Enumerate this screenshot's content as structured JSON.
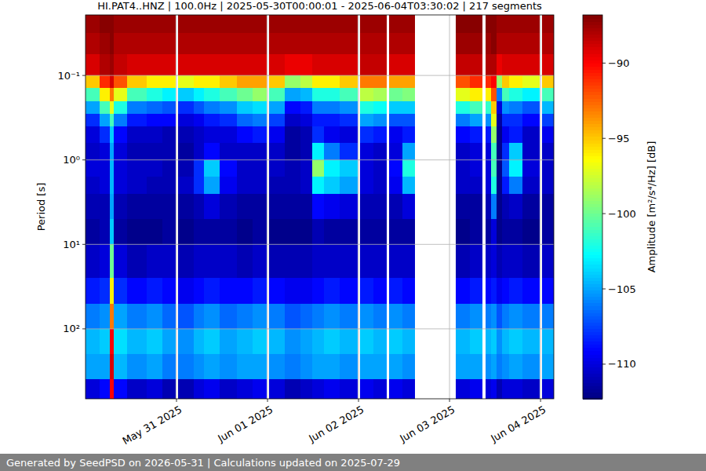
{
  "chart_data": {
    "type": "heatmap",
    "title": "HI.PAT4..HNZ | 100.0Hz | 2025-05-30T00:00:01 - 2025-06-04T03:30:02 | 217 segments",
    "y_label": "Period [s]",
    "colorbar_label": "Amplitude [m²/s⁴/Hz] [dB]",
    "footer": "Generated by SeedPSD on 2026-05-31 | Calculations updated on 2025-07-29",
    "log": "y",
    "grid": true,
    "xlim": [
      "2025-05-30T00:00:01",
      "2025-06-04T03:30:02"
    ],
    "ylim": [
      0.0192,
      673
    ],
    "xticks": [
      {
        "value": "2025-05-31T00:00",
        "label": "May 31 2025"
      },
      {
        "value": "2025-06-01T00:00",
        "label": "Jun 01 2025"
      },
      {
        "value": "2025-06-02T00:00",
        "label": "Jun 02 2025"
      },
      {
        "value": "2025-06-03T00:00",
        "label": "Jun 03 2025"
      },
      {
        "value": "2025-06-04T00:00",
        "label": "Jun 04 2025"
      }
    ],
    "yticks": [
      {
        "value": 0.1,
        "label": "10⁻¹"
      },
      {
        "value": 1,
        "label": "10⁰"
      },
      {
        "value": 10,
        "label": "10¹"
      },
      {
        "value": 100,
        "label": "10²"
      }
    ],
    "colorbar_lim": [
      -112.3,
      -86.8
    ],
    "colorbar_ticks": [
      {
        "value": -90,
        "label": "−90"
      },
      {
        "value": -95,
        "label": "−95"
      },
      {
        "value": -100,
        "label": "−100"
      },
      {
        "value": -105,
        "label": "−105"
      },
      {
        "value": -110,
        "label": "−110"
      }
    ],
    "x_edges": [
      "2025-05-30T00:00:01",
      "2025-05-30T03:38",
      "2025-05-30T06:20",
      "2025-05-30T07:23",
      "2025-05-30T10:55",
      "2025-05-30T16:06",
      "2025-05-30T20:16",
      "2025-05-30T23:35",
      "2025-05-31T00:25",
      "2025-05-31T04:34",
      "2025-05-31T07:16",
      "2025-05-31T11:26",
      "2025-05-31T16:00",
      "2025-05-31T20:09",
      "2025-05-31T23:35",
      "2025-06-01T00:25",
      "2025-06-01T04:28",
      "2025-06-01T08:37",
      "2025-06-01T11:44",
      "2025-06-01T14:51",
      "2025-06-01T19:01",
      "2025-06-01T23:35",
      "2025-06-02T00:25",
      "2025-06-02T03:57",
      "2025-06-02T07:16",
      "2025-06-02T08:06",
      "2025-06-02T11:38",
      "2025-06-02T14:45",
      "2025-06-03T01:34",
      "2025-06-03T05:18",
      "2025-06-03T08:37",
      "2025-06-03T09:27",
      "2025-06-03T10:55",
      "2025-06-03T12:22",
      "2025-06-03T13:49",
      "2025-06-03T15:41",
      "2025-06-03T19:13",
      "2025-06-03T23:35",
      "2025-06-04T00:25",
      "2025-06-04T03:30:02"
    ],
    "y_edges": [
      0.0192,
      0.0316,
      0.0562,
      0.1,
      0.141,
      0.2,
      0.282,
      0.398,
      0.631,
      1,
      1.58,
      2.51,
      5.01,
      10,
      25.1,
      50.1,
      100,
      200,
      398,
      673
    ],
    "values": [
      [
        -87.5,
        -88,
        -89,
        -95,
        -101,
        -105,
        -108,
        -110,
        -110.5,
        -110,
        -110.5,
        -111,
        -111.5,
        -110.5,
        -108.5,
        -106,
        -104.5,
        -105,
        -110
      ],
      [
        -87,
        -87.5,
        -88,
        -91,
        -96,
        -101,
        -105,
        -108,
        -110,
        -110,
        -110,
        -111,
        -111,
        -110,
        -108,
        -105.5,
        -104,
        -105,
        -109
      ],
      [
        -87,
        -87,
        -87.5,
        -89,
        -93,
        -97,
        -101,
        -104,
        -105,
        -104.5,
        -104.5,
        -105,
        -104,
        -100,
        -96,
        -93,
        -90,
        -89,
        -90
      ],
      [
        -87.5,
        -88,
        -88.5,
        -92,
        -97,
        -102,
        -106,
        -109,
        -110,
        -110,
        -110,
        -111,
        -111.5,
        -110,
        -108,
        -105,
        -103.5,
        -104.5,
        -109
      ],
      [
        -87.5,
        -88,
        -89,
        -95,
        -101,
        -106,
        -108.5,
        -110.5,
        -111,
        -110.5,
        -110.5,
        -111.5,
        -112,
        -111,
        -109,
        -106,
        -104.5,
        -105.5,
        -110.5
      ],
      [
        -87.5,
        -88,
        -89,
        -96,
        -102,
        -106.5,
        -109,
        -110.5,
        -111,
        -110.5,
        -111,
        -111.5,
        -112,
        -110.5,
        -108.5,
        -105.5,
        -104,
        -105,
        -110
      ],
      [
        -87.5,
        -88,
        -89,
        -96,
        -103,
        -107,
        -109,
        -111,
        -111,
        -111,
        -111,
        -111.5,
        -111.5,
        -110.5,
        -109,
        -106.5,
        -105,
        -106,
        -111
      ],
      null,
      [
        -87.5,
        -88,
        -89,
        -97,
        -104,
        -108,
        -110,
        -111,
        -111.5,
        -111,
        -110.5,
        -111.5,
        -112,
        -111,
        -109.5,
        -107,
        -105.5,
        -106,
        -111
      ],
      [
        -87.5,
        -88,
        -89,
        -96,
        -103,
        -107,
        -109.5,
        -110.5,
        -110.5,
        -108,
        -108,
        -111,
        -111.5,
        -110.5,
        -109,
        -106,
        -104.5,
        -105.5,
        -110
      ],
      [
        -87.5,
        -88,
        -89,
        -96,
        -102,
        -106,
        -108.5,
        -110,
        -109,
        -104,
        -105,
        -110,
        -111.5,
        -110.5,
        -108.5,
        -105.5,
        -104,
        -105,
        -109.5
      ],
      [
        -87.5,
        -88,
        -89,
        -95,
        -101,
        -105.5,
        -108,
        -110,
        -110.5,
        -109,
        -109.5,
        -111,
        -111.5,
        -110.5,
        -109,
        -106.5,
        -105,
        -105.5,
        -110.5
      ],
      [
        -87.5,
        -88,
        -89,
        -94,
        -100,
        -104,
        -106.5,
        -109,
        -110.5,
        -110.5,
        -110.5,
        -111.5,
        -112,
        -111,
        -109,
        -106,
        -104.5,
        -105,
        -110
      ],
      [
        -87.5,
        -88,
        -89,
        -94,
        -99,
        -103.5,
        -106,
        -108.5,
        -110.5,
        -110.5,
        -110.5,
        -111.5,
        -111.5,
        -110.5,
        -108.5,
        -105.5,
        -104,
        -105,
        -109.5
      ],
      null,
      [
        -87.5,
        -88,
        -89,
        -95,
        -101,
        -105,
        -107.5,
        -109.5,
        -110.5,
        -110.5,
        -111,
        -111.5,
        -112,
        -111,
        -109,
        -106,
        -104.5,
        -105.5,
        -110
      ],
      [
        -87.5,
        -88,
        -89.5,
        -99,
        -105,
        -109,
        -110.5,
        -111.5,
        -111.5,
        -111,
        -111,
        -111.5,
        -112,
        -111,
        -109.5,
        -107,
        -105.5,
        -106,
        -111
      ],
      [
        -87.5,
        -88,
        -89.5,
        -98,
        -104.5,
        -108.5,
        -110,
        -111,
        -111,
        -110.5,
        -110.5,
        -111.5,
        -112,
        -111,
        -109.5,
        -106.5,
        -105,
        -105.5,
        -110.5
      ],
      [
        -87.5,
        -88,
        -89,
        -96,
        -102,
        -106,
        -108.5,
        -108,
        -103,
        -99,
        -103,
        -109,
        -111,
        -110.5,
        -109,
        -106,
        -104.5,
        -105,
        -110
      ],
      [
        -87.5,
        -88,
        -89,
        -96,
        -102,
        -106,
        -108.5,
        -109.5,
        -106,
        -103,
        -104,
        -109.5,
        -111.5,
        -110.5,
        -108.5,
        -105.5,
        -104,
        -105,
        -109.5
      ],
      [
        -87.5,
        -88,
        -89,
        -95,
        -101,
        -105.5,
        -108,
        -110,
        -108,
        -104,
        -105,
        -110,
        -111.5,
        -110.5,
        -109,
        -106,
        -104.5,
        -105.5,
        -110
      ],
      null,
      [
        -87.5,
        -88,
        -88.5,
        -93,
        -98,
        -102,
        -105,
        -108,
        -110,
        -110,
        -110,
        -111,
        -111.5,
        -110.5,
        -108.5,
        -105.5,
        -104,
        -105,
        -109.5
      ],
      [
        -87.5,
        -88,
        -88.5,
        -93,
        -98.5,
        -102.5,
        -105.5,
        -108.5,
        -110.5,
        -110.5,
        -110.5,
        -111,
        -111.5,
        -110.5,
        -109,
        -106,
        -104.5,
        -105,
        -110
      ],
      null,
      [
        -87.5,
        -88,
        -89,
        -94,
        -100,
        -104,
        -107,
        -109.5,
        -110,
        -109,
        -109.5,
        -111,
        -111.5,
        -110.5,
        -108.5,
        -105.5,
        -104,
        -105,
        -109.5
      ],
      [
        -87.5,
        -88,
        -89,
        -94,
        -99.5,
        -104,
        -107,
        -108.5,
        -105,
        -102,
        -104.5,
        -110,
        -111.5,
        -110.5,
        -109,
        -106,
        -104.5,
        -105.5,
        -110
      ],
      null,
      [
        -87,
        -87.5,
        -88.5,
        -92,
        -97,
        -102,
        -106,
        -109,
        -110.5,
        -110.5,
        -110.5,
        -111.5,
        -112,
        -111,
        -109,
        -106,
        -104.5,
        -105,
        -110
      ],
      [
        -87,
        -87.5,
        -88.5,
        -91,
        -96,
        -101,
        -105,
        -108.5,
        -110,
        -110,
        -110.5,
        -111.5,
        -111.5,
        -110.5,
        -108.5,
        -105.5,
        -104,
        -105,
        -109.5
      ],
      null,
      [
        -87,
        -87.5,
        -88,
        -91,
        -96,
        -101.5,
        -105.5,
        -108.5,
        -110,
        -110,
        -110,
        -111,
        -111.5,
        -110.5,
        -109,
        -106,
        -104.5,
        -105.5,
        -110
      ],
      [
        -87,
        -87,
        -88,
        -90,
        -92,
        -95,
        -97,
        -99,
        -101,
        -101,
        -102,
        -106,
        -110,
        -110,
        -108.5,
        -105.5,
        -104,
        -105,
        -109.5
      ],
      [
        -87.5,
        -88,
        -89.5,
        -99,
        -106,
        -110,
        -111.5,
        -112,
        -112,
        -112,
        -112,
        -112,
        -112,
        -111,
        -109.5,
        -107,
        -105.5,
        -106,
        -111
      ],
      [
        -87.5,
        -88,
        -89,
        -95,
        -101,
        -105.5,
        -108,
        -109.5,
        -108,
        -107,
        -108.5,
        -111,
        -111.5,
        -110.5,
        -109,
        -106,
        -104.5,
        -105.5,
        -110
      ],
      [
        -87.5,
        -88,
        -89,
        -96,
        -102,
        -106,
        -108,
        -108.5,
        -104,
        -103,
        -106,
        -110.5,
        -111.5,
        -110.5,
        -108.5,
        -105.5,
        -104,
        -105,
        -110
      ],
      [
        -87.5,
        -88,
        -89,
        -97,
        -103,
        -107,
        -109,
        -110.5,
        -110.5,
        -110,
        -110.5,
        -111.5,
        -112,
        -111,
        -109,
        -106,
        -104.5,
        -105.5,
        -110.5
      ],
      null,
      [
        -87.5,
        -88,
        -89,
        -95,
        -101,
        -104.5,
        -107.5,
        -109.5,
        -110.5,
        -110.5,
        -110.5,
        -111.5,
        -111.5,
        -110.5,
        -109,
        -106,
        -104.5,
        -105,
        -110
      ]
    ]
  }
}
